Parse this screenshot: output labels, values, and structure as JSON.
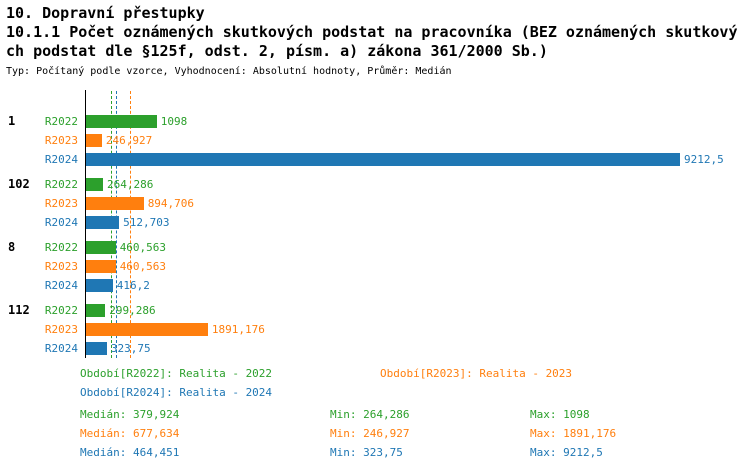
{
  "header": {
    "title": "10. Dopravní přestupky",
    "subtitle_line1": "10.1.1 Počet oznámených skutkových podstat na pracovníka (BEZ oznámených skutkový",
    "subtitle_line2": "ch podstat dle §125f, odst. 2, písm. a) zákona 361/2000 Sb.)",
    "meta": "Typ: Počítaný podle vzorce, Vyhodnocení: Absolutní hodnoty, Průměr: Medián"
  },
  "colors": {
    "r2022": "#2CA02C",
    "r2023": "#FF7F0E",
    "r2024": "#1F77B4",
    "axis": "#000000"
  },
  "chart_data": {
    "type": "bar",
    "orientation": "horizontal",
    "title": "10.1.1 Počet oznámených skutkových podstat na pracovníka (BEZ oznámených skutkových podstat dle §125f, odst. 2, písm. a) zákona 361/2000 Sb.)",
    "subtitle": "Typ: Počítaný podle vzorce, Vyhodnocení: Absolutní hodnoty, Průměr: Medián",
    "categories": [
      "1",
      "102",
      "8",
      "112"
    ],
    "series": [
      {
        "name": "R2022",
        "color": "#2CA02C",
        "values": [
          1098,
          264.286,
          460.563,
          299.286
        ],
        "value_labels": [
          "1098",
          "264,286",
          "460,563",
          "299,286"
        ]
      },
      {
        "name": "R2023",
        "color": "#FF7F0E",
        "values": [
          246.927,
          894.706,
          460.563,
          1891.176
        ],
        "value_labels": [
          "246,927",
          "894,706",
          "460,563",
          "1891,176"
        ]
      },
      {
        "name": "R2024",
        "color": "#1F77B4",
        "values": [
          9212.5,
          512.703,
          416.2,
          323.75
        ],
        "value_labels": [
          "9212,5",
          "512,703",
          "416,2",
          "323,75"
        ]
      }
    ],
    "xlim": [
      0,
      9212.5
    ],
    "grid": false,
    "legend_position": "bottom",
    "medians": [
      {
        "series": "R2022",
        "value": 379.924,
        "color": "#2CA02C"
      },
      {
        "series": "R2023",
        "value": 677.634,
        "color": "#FF7F0E"
      },
      {
        "series": "R2024",
        "value": 464.451,
        "color": "#1F77B4"
      }
    ],
    "stats": [
      {
        "series": "R2022",
        "median": 379.924,
        "min": 264.286,
        "max": 1098
      },
      {
        "series": "R2023",
        "median": 677.634,
        "min": 246.927,
        "max": 1891.176
      },
      {
        "series": "R2024",
        "median": 464.451,
        "min": 323.75,
        "max": 9212.5
      }
    ]
  },
  "legend": [
    {
      "text": "Období[R2022]: Realita - 2022",
      "color": "#2CA02C"
    },
    {
      "text": "Období[R2023]: Realita - 2023",
      "color": "#FF7F0E"
    },
    {
      "text": "Období[R2024]: Realita - 2024",
      "color": "#1F77B4"
    }
  ],
  "stats_display": [
    {
      "median": "Medián: 379,924",
      "min": "Min: 264,286",
      "max": "Max: 1098",
      "color": "#2CA02C"
    },
    {
      "median": "Medián: 677,634",
      "min": "Min: 246,927",
      "max": "Max: 1891,176",
      "color": "#FF7F0E"
    },
    {
      "median": "Medián: 464,451",
      "min": "Min: 323,75",
      "max": "Max: 9212,5",
      "color": "#1F77B4"
    }
  ]
}
